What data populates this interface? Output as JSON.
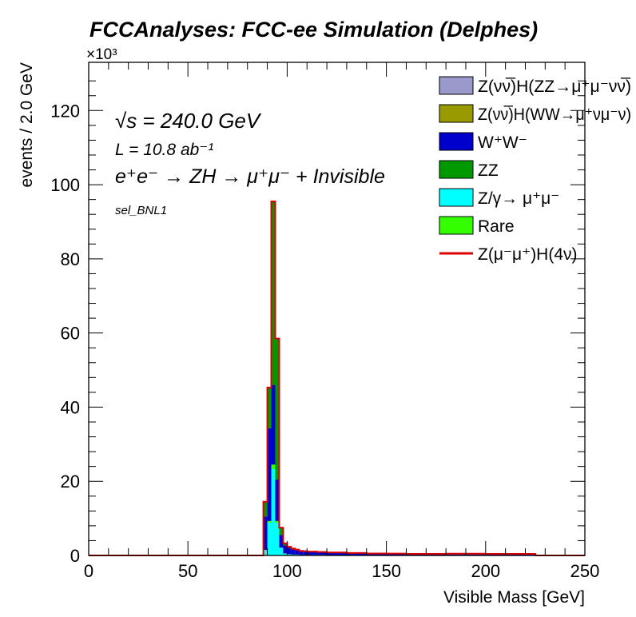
{
  "chart_data": {
    "type": "area",
    "title": "FCCAnalyses: FCC-ee Simulation (Delphes)",
    "xlabel": "Visible Mass [GeV]",
    "ylabel": "events / 2.0 GeV",
    "y_multiplier": "×10³",
    "xlim": [
      0,
      250
    ],
    "ylim": [
      0,
      133
    ],
    "grid": false,
    "legend_position": "top-right",
    "annotations": {
      "sqrt_s": "√s = 240.0 GeV",
      "lumi": "L = 10.8 ab⁻¹",
      "process": "e⁺e⁻ → ZH → μ⁺μ⁻ + Invisible",
      "selection": "sel_BNL1"
    },
    "x_ticks": [
      0,
      50,
      100,
      150,
      200,
      250
    ],
    "y_ticks": [
      0,
      20,
      40,
      60,
      80,
      100,
      120
    ],
    "bin_edges": [
      86,
      88,
      90,
      92,
      94,
      96,
      98,
      100,
      102,
      104,
      106,
      108,
      110,
      115,
      120,
      130,
      140,
      150,
      160,
      180,
      200,
      225,
      230
    ],
    "series": [
      {
        "name": "Z/γ→ μ⁺μ⁻",
        "color": "#00ffff",
        "values": [
          0.0,
          1.5,
          8.8,
          23.3,
          8.8,
          2.0,
          0.5,
          0.3,
          0.2,
          0.2,
          0.1,
          0.1,
          0.1,
          0.1,
          0.05,
          0.05,
          0.03,
          0.03,
          0.02,
          0.02,
          0.02,
          0.0
        ]
      },
      {
        "name": "Rare",
        "color": "#33ff00",
        "values": [
          0.0,
          0.0,
          0.5,
          1.2,
          0.5,
          0.1,
          0.05,
          0.05,
          0.05,
          0.05,
          0.05,
          0.05,
          0.05,
          0.05,
          0.05,
          0.02,
          0.02,
          0.02,
          0.02,
          0.02,
          0.02,
          0.0
        ]
      },
      {
        "name": "W⁺W⁻",
        "color": "#0000cc",
        "values": [
          0.0,
          9.0,
          25.0,
          21.5,
          11.2,
          3.4,
          2.2,
          1.7,
          1.4,
          1.2,
          1.0,
          0.9,
          0.8,
          0.7,
          0.6,
          0.5,
          0.4,
          0.35,
          0.3,
          0.25,
          0.2,
          0.0
        ]
      },
      {
        "name": "ZZ",
        "color": "#009900",
        "values": [
          0.0,
          4.0,
          11.0,
          49.5,
          38.0,
          2.0,
          0.5,
          0.3,
          0.2,
          0.15,
          0.1,
          0.1,
          0.1,
          0.1,
          0.1,
          0.1,
          0.1,
          0.1,
          0.1,
          0.2,
          0.2,
          0.0
        ]
      },
      {
        "name": "Z(νν̅)H(WW→μ⁺νμ⁻ν)",
        "color": "#999900",
        "values": [
          0.0,
          0.0,
          0.0,
          0.0,
          0.0,
          0.0,
          0.0,
          0.0,
          0.0,
          0.0,
          0.0,
          0.0,
          0.0,
          0.0,
          0.0,
          0.0,
          0.0,
          0.0,
          0.0,
          0.0,
          0.0,
          0.0
        ]
      },
      {
        "name": "Z(νν̅)H(ZZ→μ⁺μ⁻νν̅)",
        "color": "#9999cc",
        "values": [
          0.0,
          0.0,
          0.0,
          0.0,
          0.0,
          0.0,
          0.0,
          0.0,
          0.0,
          0.0,
          0.0,
          0.0,
          0.0,
          0.0,
          0.0,
          0.0,
          0.0,
          0.0,
          0.0,
          0.0,
          0.0,
          0.0
        ]
      }
    ],
    "signal": {
      "name": "Z(μ⁻μ⁺)H(4ν)",
      "color": "#dd0000",
      "style": "line"
    },
    "legend": [
      {
        "label": "Z(νν̅)H(ZZ→μ⁺μ⁻νν̅)",
        "color": "#9999cc",
        "kind": "box"
      },
      {
        "label": "Z(νν̅)H(WW→μ⁺νμ⁻ν)",
        "color": "#999900",
        "kind": "box"
      },
      {
        "label": "W⁺W⁻",
        "color": "#0000cc",
        "kind": "box"
      },
      {
        "label": "ZZ",
        "color": "#009900",
        "kind": "box"
      },
      {
        "label": "Z/γ→ μ⁺μ⁻",
        "color": "#00ffff",
        "kind": "box"
      },
      {
        "label": "Rare",
        "color": "#33ff00",
        "kind": "box"
      },
      {
        "label": "Z(μ⁻μ⁺)H(4ν)",
        "color": "#dd0000",
        "kind": "line"
      }
    ]
  }
}
